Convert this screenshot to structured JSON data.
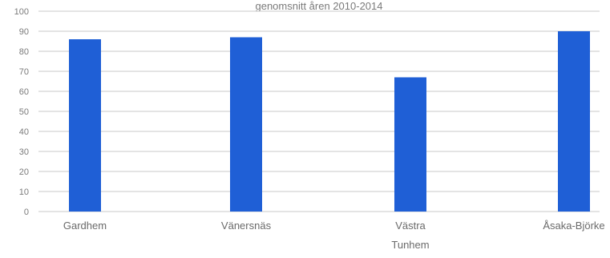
{
  "chart_data": {
    "type": "bar",
    "title": "genomsnitt åren 2010-2014",
    "categories": [
      "Gardhem",
      "Vänersnäs",
      "Västra Tunhem",
      "Åsaka-Björke"
    ],
    "category_lines": [
      [
        "Gardhem"
      ],
      [
        "Vänersnäs"
      ],
      [
        "Västra",
        "Tunhem"
      ],
      [
        "Åsaka-Björke"
      ]
    ],
    "values": [
      86,
      87,
      67,
      90
    ],
    "ylim": [
      0,
      100
    ],
    "yticks": [
      0,
      10,
      20,
      30,
      40,
      50,
      60,
      70,
      80,
      90,
      100
    ],
    "grid": true,
    "xlabel": "",
    "ylabel": "",
    "colors": {
      "bar": "#1f5fd6",
      "grid": "#c8c8c8",
      "text": "#7a7a7a",
      "highlight_label": "#4aa89a"
    }
  }
}
